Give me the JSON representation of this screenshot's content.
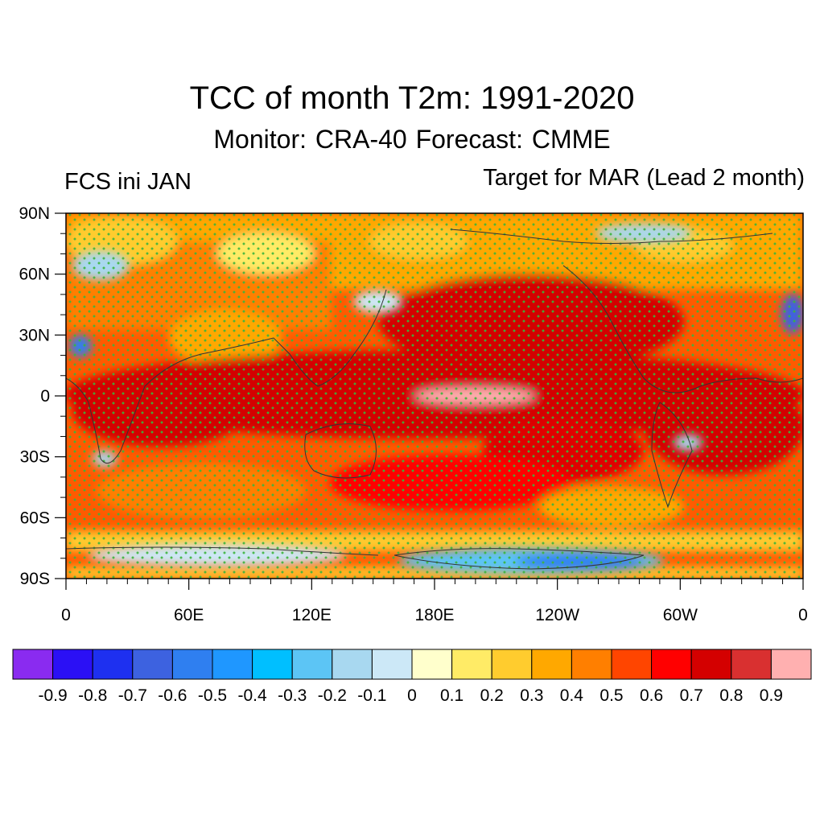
{
  "title": "TCC of month T2m: 1991-2020",
  "subtitle": "Monitor: CRA-40   Forecast: CMME",
  "left_label": "FCS ini JAN",
  "right_label": "Target for MAR (Lead 2 month)",
  "map": {
    "projection": "cylindrical-equidistant",
    "lon_range": [
      0,
      360
    ],
    "lat_range": [
      -90,
      90
    ],
    "lat_ticks": [
      {
        "value": 90,
        "label": "90N"
      },
      {
        "value": 60,
        "label": "60N"
      },
      {
        "value": 30,
        "label": "30N"
      },
      {
        "value": 0,
        "label": "0"
      },
      {
        "value": -30,
        "label": "30S"
      },
      {
        "value": -60,
        "label": "60S"
      },
      {
        "value": -90,
        "label": "90S"
      }
    ],
    "lon_ticks": [
      {
        "value": 0,
        "label": "0"
      },
      {
        "value": 60,
        "label": "60E"
      },
      {
        "value": 120,
        "label": "120E"
      },
      {
        "value": 180,
        "label": "180E"
      },
      {
        "value": 240,
        "label": "120W"
      },
      {
        "value": 300,
        "label": "60W"
      },
      {
        "value": 360,
        "label": "0"
      }
    ],
    "stippling": "green dots mark statistically significant correlation"
  },
  "colorbar": {
    "labels": [
      "-0.9",
      "-0.8",
      "-0.7",
      "-0.6",
      "-0.5",
      "-0.4",
      "-0.3",
      "-0.2",
      "-0.1",
      "0",
      "0.1",
      "0.2",
      "0.3",
      "0.4",
      "0.5",
      "0.6",
      "0.7",
      "0.8",
      "0.9"
    ],
    "colors": [
      "#8a2bf0",
      "#2b10f5",
      "#1e30f0",
      "#3d62e0",
      "#2f7ff0",
      "#1f97ff",
      "#00bfff",
      "#5cc5f5",
      "#a8d8f0",
      "#cce8f7",
      "#ffffcc",
      "#ffeb66",
      "#ffcc2e",
      "#ffa800",
      "#ff7f00",
      "#ff4500",
      "#ff0000",
      "#d40000",
      "#d93030",
      "#ffb0b0"
    ]
  },
  "palette": {
    "background": "#e0100e",
    "land_outline": "#333333",
    "stipple": "#3cb43c"
  }
}
